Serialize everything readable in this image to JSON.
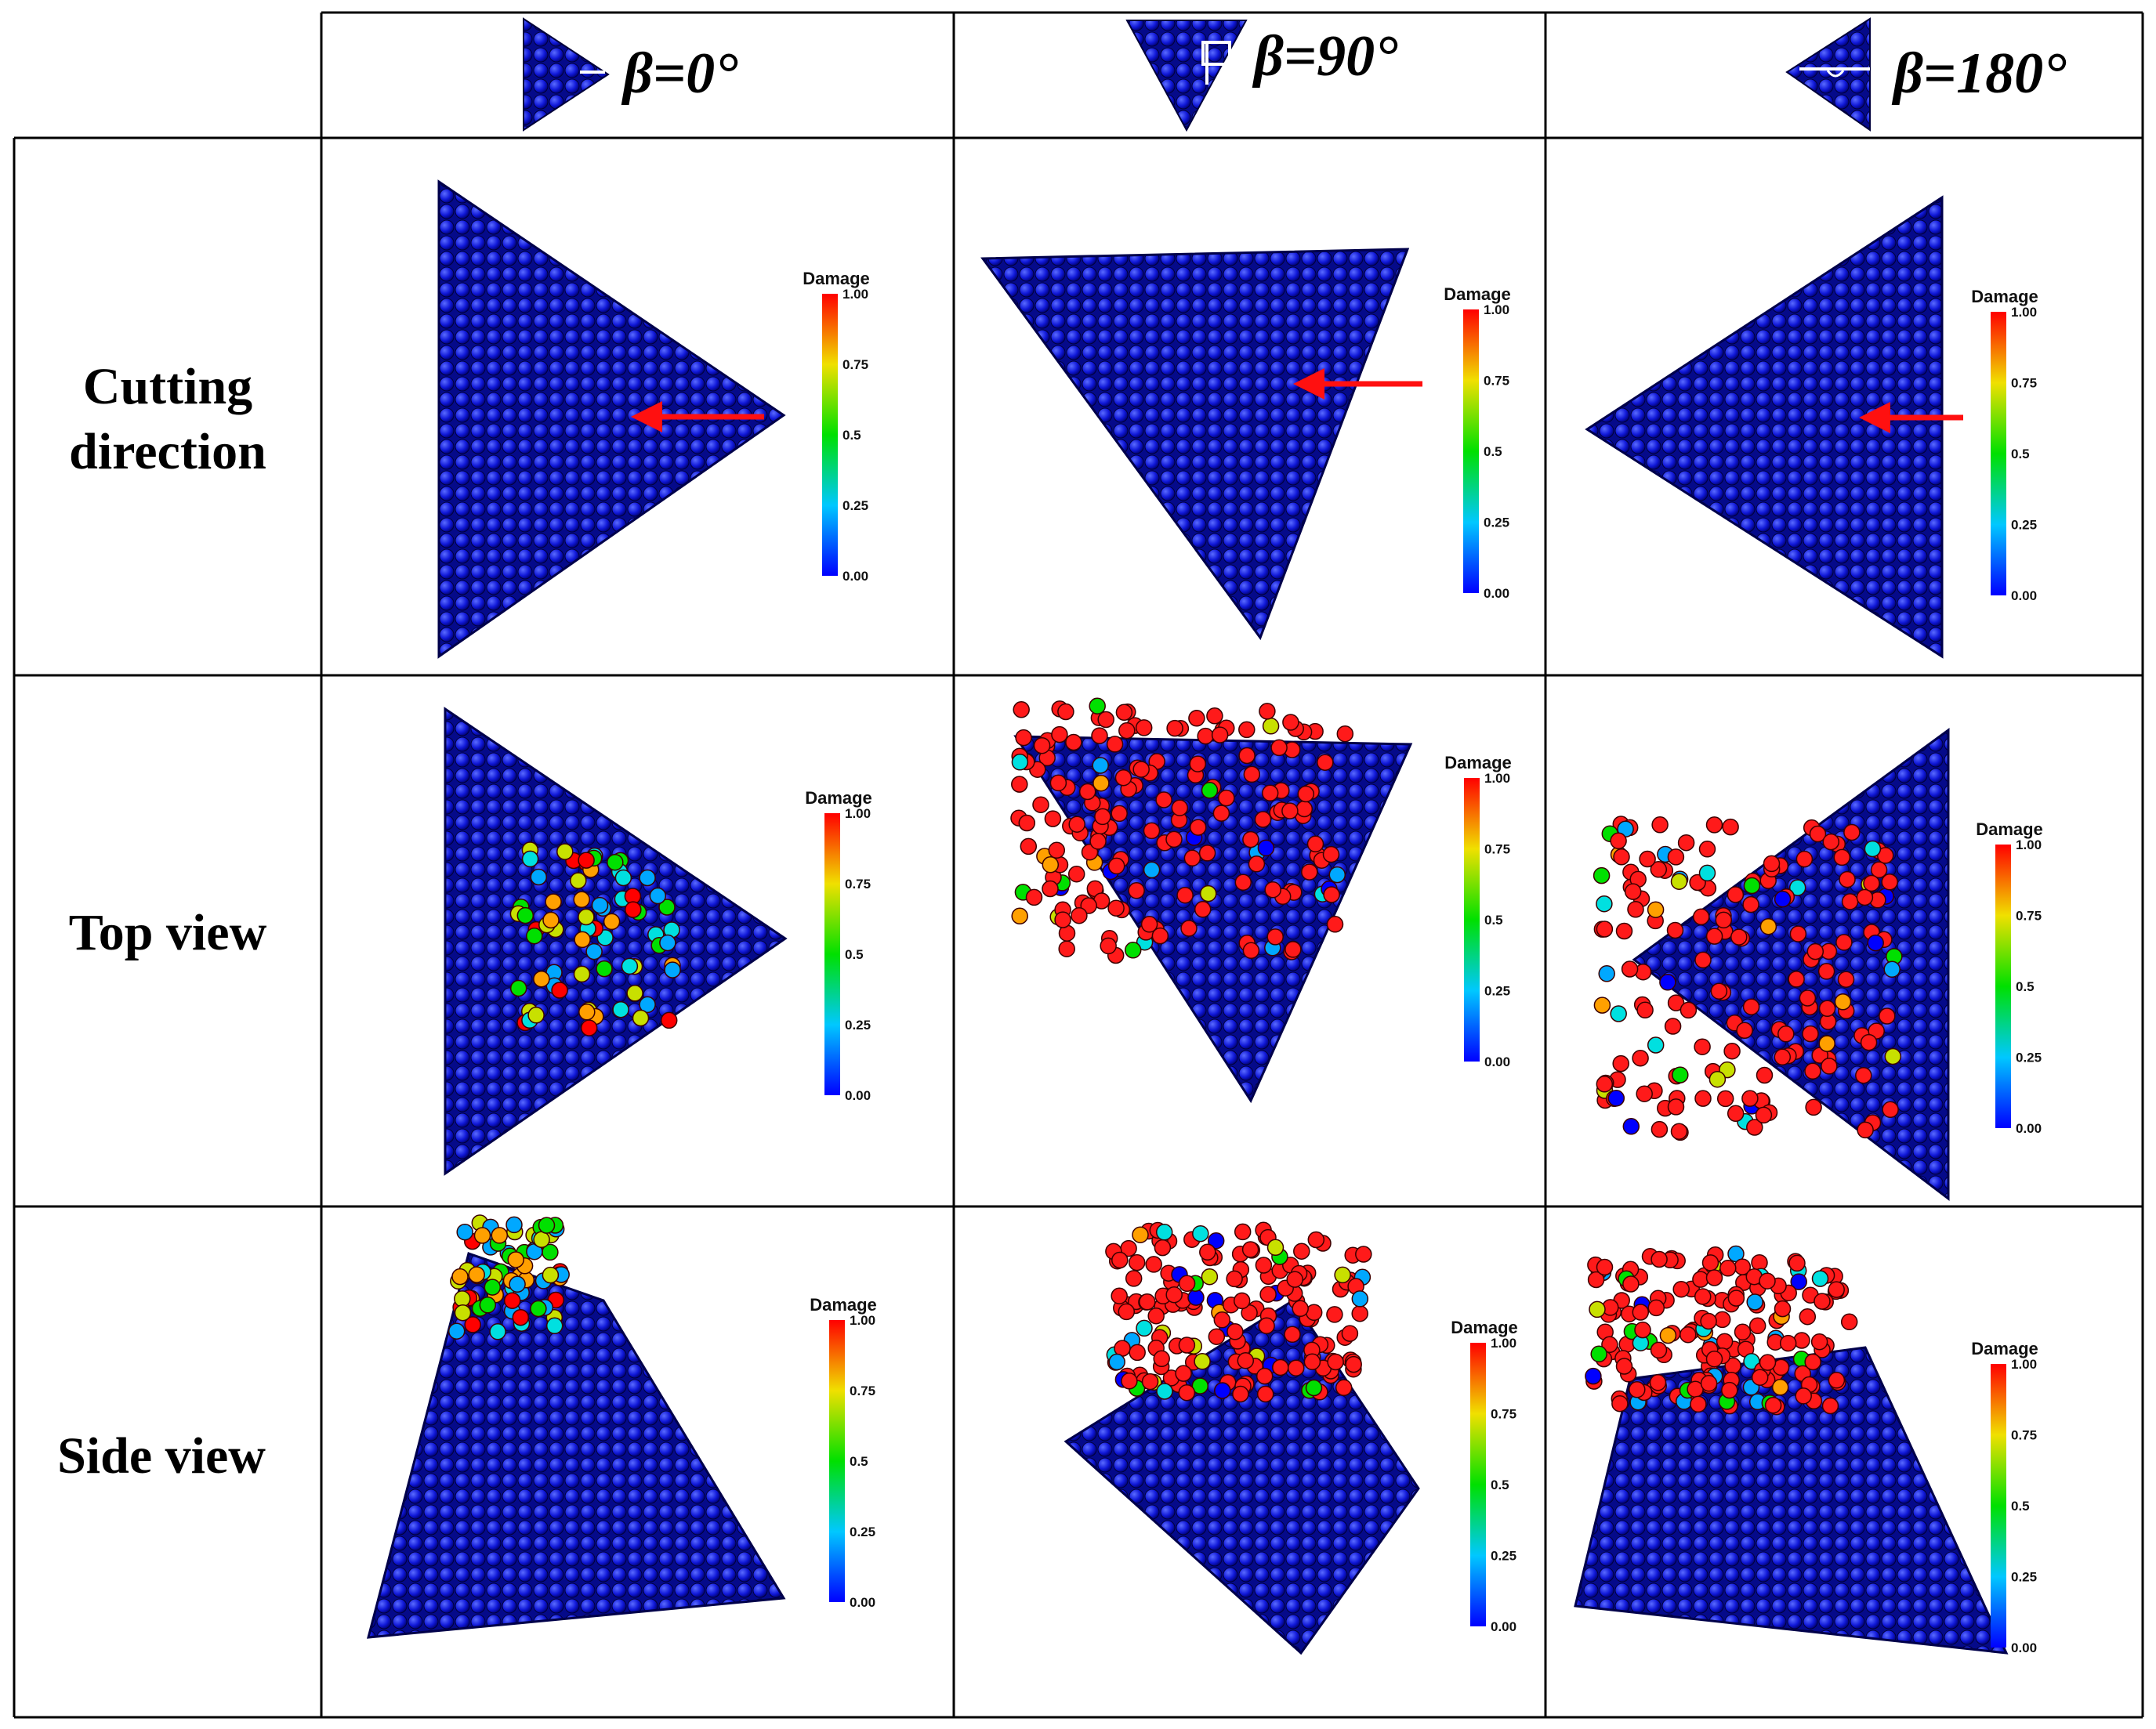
{
  "columns": [
    {
      "id": "b0",
      "label": "β=0°",
      "icon": "triangle-right-icon"
    },
    {
      "id": "b90",
      "label": "β=90°",
      "icon": "triangle-down-icon"
    },
    {
      "id": "b180",
      "label": "β=180°",
      "icon": "triangle-left-icon"
    }
  ],
  "rows": [
    {
      "id": "cutting",
      "label_lines": [
        "Cutting",
        "direction"
      ]
    },
    {
      "id": "top",
      "label_lines": [
        "Top view"
      ]
    },
    {
      "id": "side",
      "label_lines": [
        "Side view"
      ]
    }
  ],
  "colorbar": {
    "title": "Damage",
    "ticks": [
      "1.00",
      "0.75",
      "0.5",
      "0.25",
      "0.00"
    ],
    "range": [
      0,
      1
    ]
  },
  "colors": {
    "particle_base": "#0a12c8",
    "particle_edge": "#00004a",
    "arrow": "#ff1010",
    "damage_low": "#0000ff",
    "damage_high": "#ff0000"
  }
}
